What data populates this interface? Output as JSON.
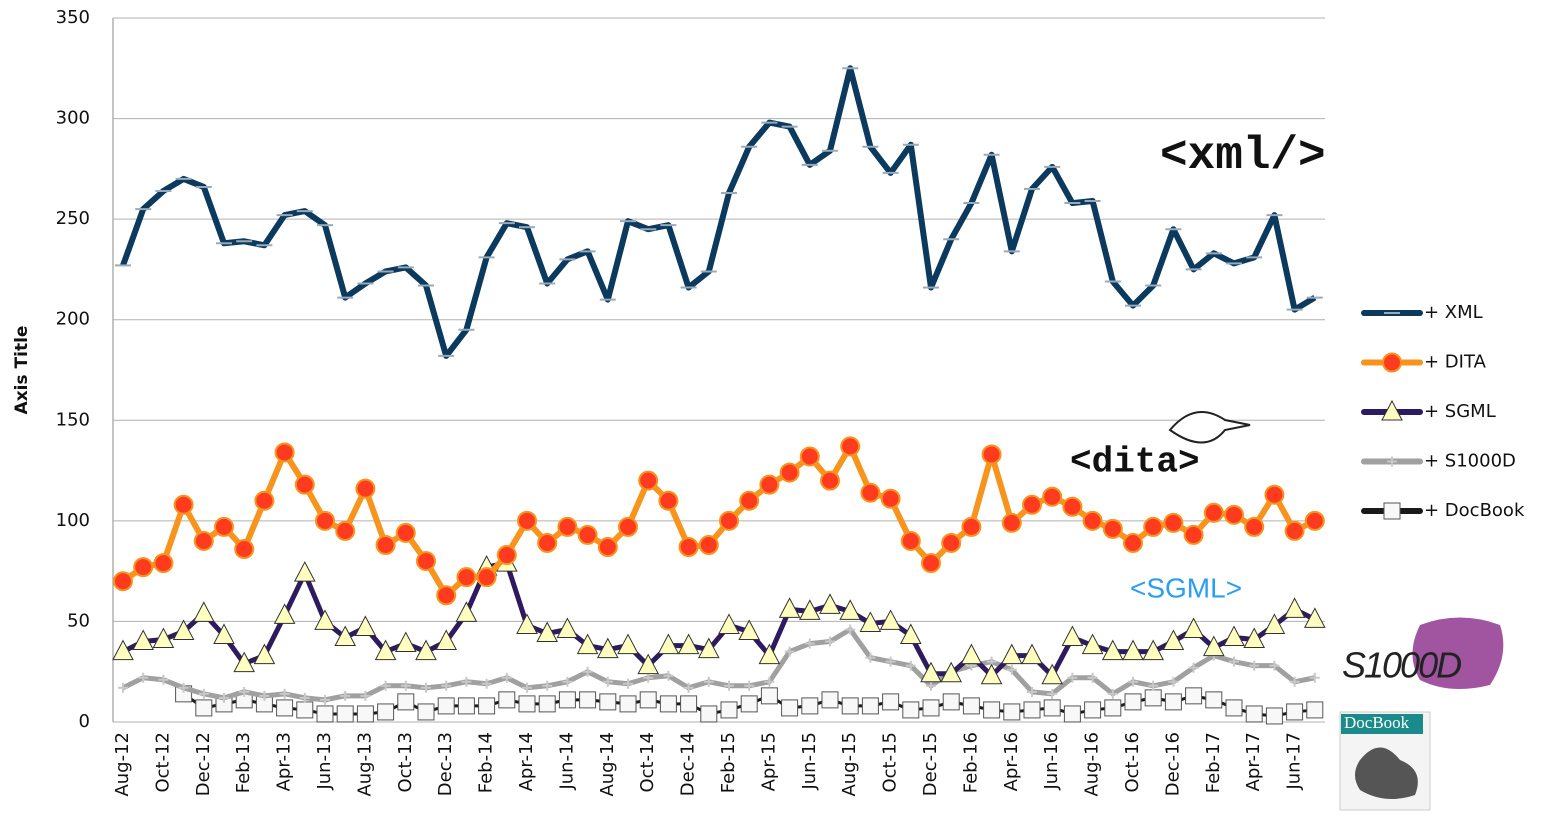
{
  "chart_data": {
    "type": "line",
    "y_label": "Axis Title",
    "categories": [
      "Aug-12",
      null,
      "Oct-12",
      null,
      "Dec-12",
      null,
      "Feb-13",
      null,
      "Apr-13",
      null,
      "Jun-13",
      null,
      "Aug-13",
      null,
      "Oct-13",
      null,
      "Dec-13",
      null,
      "Feb-14",
      null,
      "Apr-14",
      null,
      "Jun-14",
      null,
      "Aug-14",
      null,
      "Oct-14",
      null,
      "Dec-14",
      null,
      "Feb-15",
      null,
      "Apr-15",
      null,
      "Jun-15",
      null,
      "Aug-15",
      null,
      "Oct-15",
      null,
      "Dec-15",
      null,
      "Feb-16",
      null,
      "Apr-16",
      null,
      "Jun-16",
      null,
      "Aug-16",
      null,
      "Oct-16",
      null,
      "Dec-16",
      null,
      "Feb-17",
      null,
      "Apr-17",
      null,
      "Jun-17",
      null
    ],
    "ylim": [
      0,
      350
    ],
    "yticks": [
      0,
      50,
      100,
      150,
      200,
      250,
      300,
      350
    ],
    "grid": true,
    "legend": "right",
    "series": [
      {
        "name": "+ XML",
        "color": "#0b3a5e",
        "marker": "dash",
        "values": [
          227,
          255,
          264,
          270,
          266,
          238,
          239,
          237,
          252,
          254,
          247,
          211,
          218,
          224,
          226,
          217,
          182,
          195,
          231,
          248,
          246,
          218,
          230,
          234,
          210,
          249,
          245,
          247,
          216,
          224,
          263,
          286,
          298,
          296,
          277,
          284,
          325,
          286,
          273,
          287,
          216,
          240,
          258,
          282,
          234,
          265,
          276,
          258,
          259,
          219,
          207,
          217,
          245,
          225,
          233,
          228,
          231,
          252,
          205,
          211
        ]
      },
      {
        "name": "+ DITA",
        "color": "#f7941d",
        "marker": "circle",
        "values": [
          70,
          77,
          79,
          108,
          90,
          97,
          86,
          110,
          134,
          118,
          100,
          95,
          116,
          88,
          94,
          80,
          63,
          72,
          72,
          83,
          100,
          89,
          97,
          93,
          87,
          97,
          120,
          110,
          87,
          88,
          100,
          110,
          118,
          124,
          132,
          120,
          137,
          114,
          111,
          90,
          79,
          89,
          97,
          133,
          99,
          108,
          112,
          107,
          100,
          96,
          89,
          97,
          99,
          93,
          104,
          103,
          97,
          113,
          95,
          100
        ]
      },
      {
        "name": "+ SGML",
        "color": "#2e1a5e",
        "marker": "triangle",
        "values": [
          35,
          40,
          41,
          45,
          54,
          43,
          29,
          33,
          53,
          74,
          50,
          42,
          47,
          35,
          39,
          35,
          40,
          54,
          77,
          79,
          48,
          44,
          46,
          38,
          36,
          38,
          28,
          38,
          38,
          36,
          48,
          45,
          33,
          56,
          55,
          58,
          55,
          49,
          50,
          43,
          24,
          24,
          33,
          23,
          33,
          33,
          23,
          42,
          38,
          35,
          35,
          35,
          40,
          46,
          37,
          42,
          41,
          48,
          56,
          51
        ]
      },
      {
        "name": "+ S1000D",
        "color": "#a0a0a0",
        "marker": "plus",
        "values": [
          17,
          22,
          21,
          17,
          14,
          12,
          15,
          13,
          14,
          12,
          11,
          13,
          13,
          18,
          18,
          17,
          18,
          20,
          19,
          22,
          17,
          18,
          20,
          25,
          20,
          19,
          22,
          23,
          17,
          20,
          18,
          18,
          20,
          35,
          39,
          40,
          46,
          32,
          30,
          28,
          18,
          25,
          28,
          30,
          26,
          15,
          14,
          22,
          22,
          14,
          20,
          18,
          20,
          27,
          33,
          30,
          28,
          28,
          20,
          22
        ]
      },
      {
        "name": "+ DocBook",
        "color": "#1a1a1a",
        "marker": "square",
        "values": [
          null,
          null,
          null,
          14,
          7,
          9,
          11,
          9,
          7,
          6,
          4,
          4,
          4,
          5,
          10,
          5,
          8,
          8,
          8,
          11,
          9,
          9,
          11,
          11,
          10,
          9,
          11,
          9,
          9,
          4,
          6,
          9,
          13,
          7,
          8,
          11,
          8,
          8,
          10,
          6,
          7,
          10,
          8,
          6,
          5,
          6,
          7,
          4,
          6,
          7,
          10,
          12,
          10,
          13,
          11,
          7,
          4,
          3,
          5,
          6
        ]
      }
    ],
    "annotations": [
      "<xml/>",
      "<dita>",
      "<SGML>",
      "S1000D",
      "DocBook"
    ]
  }
}
